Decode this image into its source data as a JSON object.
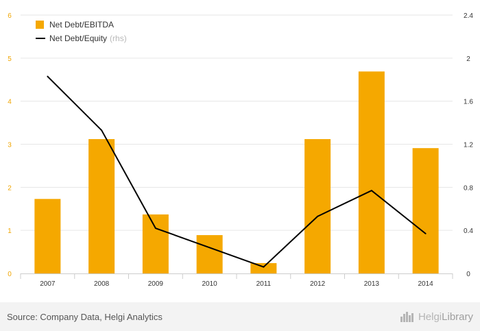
{
  "chart_data": {
    "type": "bar",
    "categories": [
      "2007",
      "2008",
      "2009",
      "2010",
      "2011",
      "2012",
      "2013",
      "2014"
    ],
    "series": [
      {
        "name": "Net Debt/EBITDA",
        "type": "bar",
        "axis": "left",
        "values": [
          1.73,
          3.12,
          1.37,
          0.89,
          0.24,
          3.12,
          4.69,
          2.91
        ]
      },
      {
        "name": "Net Debt/Equity",
        "type": "line",
        "axis": "right",
        "values": [
          1.83,
          1.33,
          0.42,
          0.24,
          0.06,
          0.53,
          0.77,
          0.37
        ]
      }
    ],
    "y_left": {
      "min": 0,
      "max": 6,
      "ticks": [
        "0",
        "1",
        "2",
        "3",
        "4",
        "5",
        "6"
      ]
    },
    "y_right": {
      "min": 0,
      "max": 2.4,
      "ticks": [
        "0",
        "0.4",
        "0.8",
        "1.2",
        "1.6",
        "2",
        "2.4"
      ]
    },
    "grid": true,
    "legend_position": "top-left"
  },
  "legend": {
    "bar_label": "Net Debt/EBITDA",
    "line_label": "Net Debt/Equity",
    "line_suffix": "(rhs)"
  },
  "colors": {
    "bar": "#f5a800",
    "line": "#000000",
    "left_axis": "#f0a500",
    "grid": "#e6e6e6"
  },
  "footer": {
    "source": "Source: Company Data, Helgi Analytics",
    "brand_light": "Helgi",
    "brand_strong": "Library"
  }
}
